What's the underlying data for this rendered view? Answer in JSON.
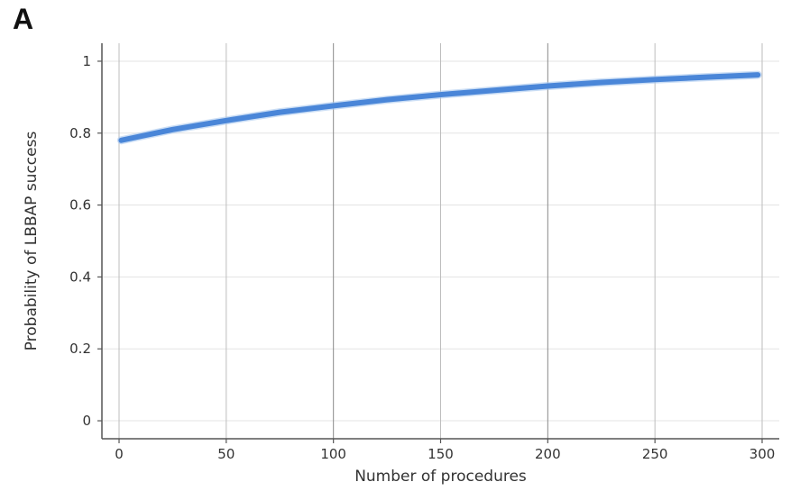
{
  "panel_label": "A",
  "chart_data": {
    "type": "line",
    "title": "",
    "xlabel": "Number of procedures",
    "ylabel": "Probability of LBBAP success",
    "xlim": [
      -8,
      308
    ],
    "ylim": [
      -0.05,
      1.05
    ],
    "x_ticks": [
      0,
      50,
      100,
      150,
      200,
      250,
      300
    ],
    "x_tick_labels": [
      "0",
      "50",
      "100",
      "150",
      "200",
      "250",
      "300"
    ],
    "y_ticks": [
      0,
      0.2,
      0.4,
      0.6,
      0.8,
      1
    ],
    "y_tick_labels": [
      "0",
      "0.2",
      "0.4",
      "0.6",
      "0.8",
      "1"
    ],
    "grid": true,
    "legend": "none",
    "series": [
      {
        "color": "#4a86d8",
        "x": [
          1,
          25,
          50,
          75,
          100,
          125,
          150,
          175,
          200,
          225,
          250,
          275,
          298
        ],
        "y": [
          0.78,
          0.81,
          0.835,
          0.858,
          0.876,
          0.893,
          0.907,
          0.919,
          0.931,
          0.941,
          0.949,
          0.956,
          0.962
        ]
      }
    ]
  }
}
